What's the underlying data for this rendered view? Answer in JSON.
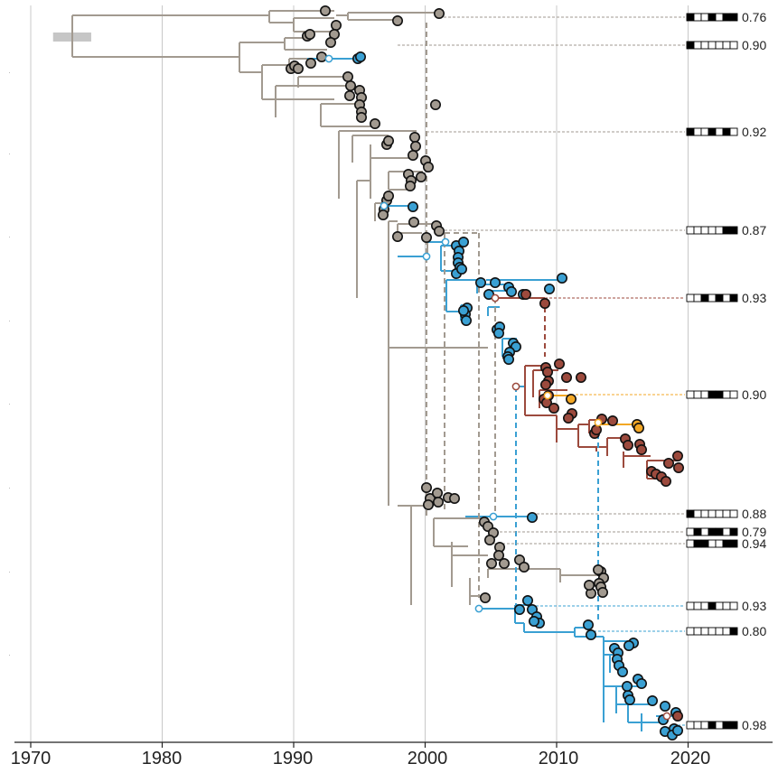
{
  "chart_data": {
    "type": "phylogenetic-tree",
    "title": "",
    "xlabel": "",
    "ylabel": "",
    "xlim": [
      1969,
      2026
    ],
    "x_ticks": [
      1970,
      1980,
      1990,
      2000,
      2010,
      2020
    ],
    "grid": "vertical",
    "colors": {
      "grey": "#a29a90",
      "blue": "#3aa0d3",
      "red": "#9c4a3d",
      "orange": "#f3a724",
      "grid": "#c8c8c8",
      "axis": "#222222",
      "root_bar": "#c6c6c6"
    },
    "root_interval": [
      1971.7,
      1974.6
    ],
    "clades": [
      {
        "color": "blue",
        "tmrca": 1992.7,
        "tips": [
          1994.9,
          1995.2
        ]
      },
      {
        "color": "blue",
        "tmrca": 1996.8,
        "tips": [
          1999.1
        ]
      },
      {
        "color": "blue",
        "tmrca": 2001.4,
        "tips": [
          2002.3,
          2002.6,
          2002.8,
          2002.5,
          2003.0,
          2002.9,
          2003.4
        ]
      },
      {
        "color": "blue",
        "tmrca": 2004.3,
        "tips": [
          2005.0,
          2005.6,
          2006.2,
          2006.4,
          2006.0
        ]
      },
      {
        "color": "red",
        "tmrca": 2005.2,
        "tips": [
          2008.1,
          2006.6,
          2009.2
        ]
      },
      {
        "color": "red",
        "tmrca": 2006.9,
        "tips": [
          2009.5,
          2010.4,
          2011.0,
          2011.6,
          2012.5,
          2012.0,
          2010.5
        ]
      },
      {
        "color": "orange",
        "tmrca": 2009.1,
        "tips": [
          2011.1
        ]
      },
      {
        "color": "red",
        "tmrca": 2011.5,
        "tips": [
          2015.2,
          2014.3,
          2014.8,
          2016.0,
          2016.4,
          2017.8,
          2019.2,
          2018.4,
          2019.1,
          2018.0
        ]
      },
      {
        "color": "orange",
        "tmrca": 2013.3,
        "tips": [
          2016.2
        ]
      },
      {
        "color": "blue",
        "tmrca": 2005.2,
        "tips": [
          2008.0
        ]
      },
      {
        "color": "grey",
        "tmrca": 2011.8,
        "tips": [
          2013.2,
          2013.4,
          2013.6,
          2012.5,
          2012.9
        ]
      },
      {
        "color": "blue",
        "tmrca": 2004.0,
        "tips": [
          2007.8,
          2008.6,
          2009.2
        ]
      },
      {
        "color": "blue",
        "tmrca": 2012.0,
        "tips": [
          2014.5,
          2015.0,
          2015.8,
          2016.5,
          2017.2,
          2018.0,
          2018.6,
          2019.1
        ]
      }
    ],
    "markers": [
      {
        "pattern": [
          1,
          0,
          0,
          1,
          0,
          1,
          1
        ],
        "value": "0.76"
      },
      {
        "pattern": [
          1,
          0,
          0,
          0,
          0,
          0,
          0
        ],
        "value": "0.90"
      },
      {
        "pattern": [
          1,
          0,
          0,
          1,
          0,
          1,
          0
        ],
        "value": "0.92"
      },
      {
        "pattern": [
          0,
          0,
          0,
          0,
          0,
          1,
          1
        ],
        "value": "0.87"
      },
      {
        "pattern": [
          0,
          0,
          1,
          0,
          1,
          0,
          1
        ],
        "value": "0.93"
      },
      {
        "pattern": [
          0,
          0,
          0,
          1,
          1,
          0,
          0
        ],
        "value": "0.90"
      },
      {
        "pattern": [
          1,
          0,
          0,
          0,
          0,
          0,
          0
        ],
        "value": "0.88"
      },
      {
        "pattern": [
          0,
          1,
          0,
          1,
          1,
          0,
          1
        ],
        "value": "0.79"
      },
      {
        "pattern": [
          0,
          1,
          1,
          0,
          0,
          1,
          1
        ],
        "value": "0.94"
      },
      {
        "pattern": [
          0,
          0,
          0,
          1,
          0,
          0,
          0
        ],
        "value": "0.93"
      },
      {
        "pattern": [
          0,
          0,
          0,
          0,
          0,
          0,
          1
        ],
        "value": "0.80"
      },
      {
        "pattern": [
          0,
          0,
          0,
          1,
          0,
          1,
          1
        ],
        "value": "0.98"
      }
    ]
  }
}
